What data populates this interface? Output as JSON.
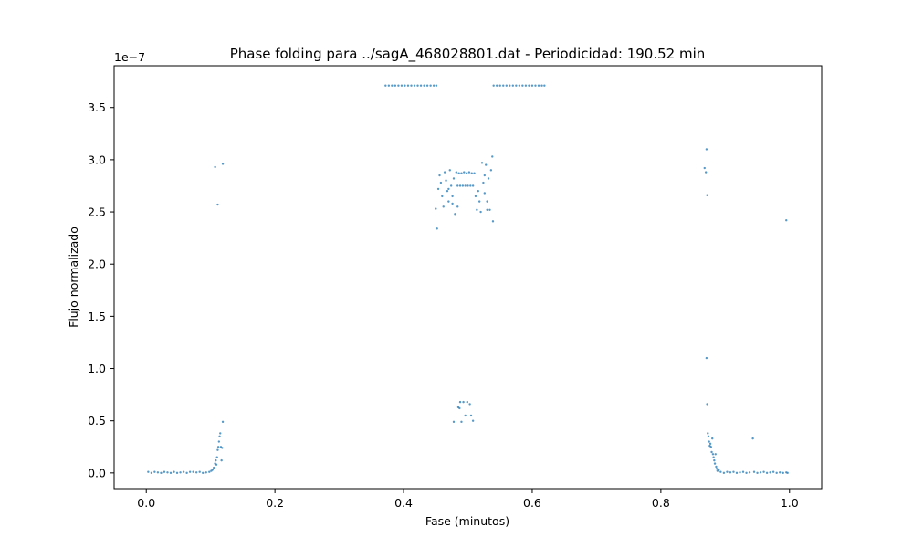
{
  "chart_data": {
    "type": "scatter",
    "title": "Phase folding para ../sagA_468028801.dat - Periodicidad: 190.52 min",
    "xlabel": "Fase (minutos)",
    "ylabel": "Flujo normalizado",
    "y_offset_label": "1e−7",
    "xlim": [
      -0.05,
      1.05
    ],
    "ylim": [
      -0.15,
      3.9
    ],
    "y_multiplier": "1e-7",
    "xticks": [
      0.0,
      0.2,
      0.4,
      0.6,
      0.8,
      1.0
    ],
    "xtick_labels": [
      "0.0",
      "0.2",
      "0.4",
      "0.6",
      "0.8",
      "1.0"
    ],
    "yticks": [
      0.0,
      0.5,
      1.0,
      1.5,
      2.0,
      2.5,
      3.0,
      3.5
    ],
    "ytick_labels": [
      "0.0",
      "0.5",
      "1.0",
      "1.5",
      "2.0",
      "2.5",
      "3.0",
      "3.5"
    ],
    "grid": false,
    "marker_color": "#1f77b4",
    "series": [
      {
        "points": [
          [
            0.003,
            0.01
          ],
          [
            0.008,
            0.0
          ],
          [
            0.013,
            0.01
          ],
          [
            0.018,
            0.005
          ],
          [
            0.023,
            0.0
          ],
          [
            0.028,
            0.01
          ],
          [
            0.033,
            0.005
          ],
          [
            0.038,
            0.0
          ],
          [
            0.043,
            0.01
          ],
          [
            0.048,
            0.0
          ],
          [
            0.053,
            0.005
          ],
          [
            0.058,
            0.01
          ],
          [
            0.063,
            0.0
          ],
          [
            0.068,
            0.01
          ],
          [
            0.073,
            0.01
          ],
          [
            0.078,
            0.005
          ],
          [
            0.083,
            0.01
          ],
          [
            0.088,
            0.0
          ],
          [
            0.093,
            0.005
          ],
          [
            0.098,
            0.01
          ],
          [
            0.101,
            0.02
          ],
          [
            0.103,
            0.03
          ],
          [
            0.105,
            0.05
          ],
          [
            0.107,
            0.09
          ],
          [
            0.108,
            0.12
          ],
          [
            0.109,
            0.08
          ],
          [
            0.11,
            0.15
          ],
          [
            0.111,
            0.22
          ],
          [
            0.112,
            0.25
          ],
          [
            0.113,
            0.3
          ],
          [
            0.114,
            0.35
          ],
          [
            0.115,
            0.38
          ],
          [
            0.116,
            0.25
          ],
          [
            0.117,
            0.12
          ],
          [
            0.118,
            0.24
          ],
          [
            0.119,
            0.49
          ],
          [
            0.107,
            2.93
          ],
          [
            0.111,
            2.57
          ],
          [
            0.119,
            2.96
          ],
          [
            0.372,
            3.71
          ],
          [
            0.377,
            3.71
          ],
          [
            0.382,
            3.71
          ],
          [
            0.387,
            3.71
          ],
          [
            0.392,
            3.71
          ],
          [
            0.397,
            3.71
          ],
          [
            0.402,
            3.71
          ],
          [
            0.407,
            3.71
          ],
          [
            0.412,
            3.71
          ],
          [
            0.417,
            3.71
          ],
          [
            0.422,
            3.71
          ],
          [
            0.427,
            3.71
          ],
          [
            0.432,
            3.71
          ],
          [
            0.437,
            3.71
          ],
          [
            0.442,
            3.71
          ],
          [
            0.447,
            3.71
          ],
          [
            0.451,
            3.71
          ],
          [
            0.54,
            3.71
          ],
          [
            0.545,
            3.71
          ],
          [
            0.55,
            3.71
          ],
          [
            0.555,
            3.71
          ],
          [
            0.56,
            3.71
          ],
          [
            0.565,
            3.71
          ],
          [
            0.57,
            3.71
          ],
          [
            0.575,
            3.71
          ],
          [
            0.58,
            3.71
          ],
          [
            0.585,
            3.71
          ],
          [
            0.59,
            3.71
          ],
          [
            0.595,
            3.71
          ],
          [
            0.6,
            3.71
          ],
          [
            0.605,
            3.71
          ],
          [
            0.61,
            3.71
          ],
          [
            0.615,
            3.71
          ],
          [
            0.619,
            3.71
          ],
          [
            0.45,
            2.53
          ],
          [
            0.452,
            2.34
          ],
          [
            0.454,
            2.72
          ],
          [
            0.456,
            2.85
          ],
          [
            0.458,
            2.78
          ],
          [
            0.46,
            2.65
          ],
          [
            0.462,
            2.55
          ],
          [
            0.464,
            2.88
          ],
          [
            0.466,
            2.8
          ],
          [
            0.468,
            2.7
          ],
          [
            0.47,
            2.6
          ],
          [
            0.472,
            2.9
          ],
          [
            0.474,
            2.75
          ],
          [
            0.476,
            2.65
          ],
          [
            0.478,
            2.82
          ],
          [
            0.48,
            2.48
          ],
          [
            0.482,
            2.88
          ],
          [
            0.484,
            2.75
          ],
          [
            0.486,
            2.87
          ],
          [
            0.488,
            2.75
          ],
          [
            0.49,
            2.87
          ],
          [
            0.492,
            2.75
          ],
          [
            0.494,
            2.88
          ],
          [
            0.496,
            2.75
          ],
          [
            0.498,
            2.87
          ],
          [
            0.5,
            2.75
          ],
          [
            0.502,
            2.88
          ],
          [
            0.504,
            2.75
          ],
          [
            0.506,
            2.87
          ],
          [
            0.508,
            2.75
          ],
          [
            0.51,
            2.87
          ],
          [
            0.512,
            2.65
          ],
          [
            0.514,
            2.52
          ],
          [
            0.516,
            2.7
          ],
          [
            0.518,
            2.6
          ],
          [
            0.52,
            2.5
          ],
          [
            0.522,
            2.97
          ],
          [
            0.524,
            2.78
          ],
          [
            0.526,
            2.68
          ],
          [
            0.528,
            2.95
          ],
          [
            0.53,
            2.6
          ],
          [
            0.532,
            2.82
          ],
          [
            0.534,
            2.52
          ],
          [
            0.536,
            2.9
          ],
          [
            0.538,
            3.03
          ],
          [
            0.539,
            2.41
          ],
          [
            0.47,
            2.72
          ],
          [
            0.476,
            2.58
          ],
          [
            0.484,
            2.55
          ],
          [
            0.526,
            2.85
          ],
          [
            0.53,
            2.52
          ],
          [
            0.478,
            0.49
          ],
          [
            0.485,
            0.63
          ],
          [
            0.488,
            0.68
          ],
          [
            0.493,
            0.68
          ],
          [
            0.496,
            0.55
          ],
          [
            0.499,
            0.68
          ],
          [
            0.503,
            0.66
          ],
          [
            0.505,
            0.55
          ],
          [
            0.508,
            0.5
          ],
          [
            0.49,
            0.49
          ],
          [
            0.487,
            0.62
          ],
          [
            0.871,
            3.1
          ],
          [
            0.868,
            2.92
          ],
          [
            0.87,
            2.88
          ],
          [
            0.872,
            2.66
          ],
          [
            0.871,
            1.1
          ],
          [
            0.872,
            0.66
          ],
          [
            0.873,
            0.38
          ],
          [
            0.874,
            0.35
          ],
          [
            0.875,
            0.3
          ],
          [
            0.876,
            0.26
          ],
          [
            0.877,
            0.28
          ],
          [
            0.878,
            0.25
          ],
          [
            0.879,
            0.2
          ],
          [
            0.88,
            0.33
          ],
          [
            0.881,
            0.18
          ],
          [
            0.882,
            0.15
          ],
          [
            0.883,
            0.12
          ],
          [
            0.884,
            0.09
          ],
          [
            0.885,
            0.18
          ],
          [
            0.886,
            0.06
          ],
          [
            0.887,
            0.04
          ],
          [
            0.888,
            0.02
          ],
          [
            0.89,
            0.03
          ],
          [
            0.893,
            0.01
          ],
          [
            0.898,
            0.0
          ],
          [
            0.903,
            0.01
          ],
          [
            0.908,
            0.005
          ],
          [
            0.913,
            0.01
          ],
          [
            0.918,
            0.0
          ],
          [
            0.923,
            0.005
          ],
          [
            0.928,
            0.01
          ],
          [
            0.933,
            0.0
          ],
          [
            0.938,
            0.005
          ],
          [
            0.943,
            0.33
          ],
          [
            0.945,
            0.01
          ],
          [
            0.95,
            0.0
          ],
          [
            0.955,
            0.005
          ],
          [
            0.96,
            0.01
          ],
          [
            0.965,
            0.0
          ],
          [
            0.97,
            0.005
          ],
          [
            0.975,
            0.01
          ],
          [
            0.98,
            0.0
          ],
          [
            0.985,
            0.005
          ],
          [
            0.99,
            0.0
          ],
          [
            0.995,
            0.005
          ],
          [
            0.997,
            0.0
          ],
          [
            0.995,
            2.42
          ]
        ]
      }
    ]
  }
}
